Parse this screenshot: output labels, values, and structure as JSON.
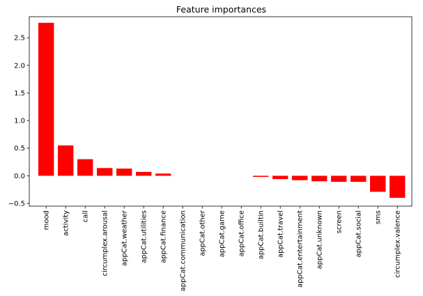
{
  "chart_data": {
    "type": "bar",
    "title": "Feature importances",
    "xlabel": "",
    "ylabel": "",
    "ylim": [
      -0.55,
      2.88
    ],
    "yticks": [
      -0.5,
      0.0,
      0.5,
      1.0,
      1.5,
      2.0,
      2.5
    ],
    "ytick_labels": [
      "−0.5",
      "0.0",
      "0.5",
      "1.0",
      "1.5",
      "2.0",
      "2.5"
    ],
    "bar_color": "#ff0000",
    "grid": false,
    "categories": [
      "mood",
      "activity",
      "call",
      "circumplex.arousal",
      "appCat.weather",
      "appCat.utilities",
      "appCat.finance",
      "appCat.communication",
      "appCat.other",
      "appCat.game",
      "appCat.office",
      "appCat.builtin",
      "appCat.travel",
      "appCat.entertainment",
      "appCat.unknown",
      "screen",
      "appCat.social",
      "sms",
      "circumplex.valence"
    ],
    "values": [
      2.77,
      0.55,
      0.3,
      0.14,
      0.13,
      0.07,
      0.04,
      0.0,
      0.0,
      0.0,
      0.0,
      -0.02,
      -0.06,
      -0.08,
      -0.1,
      -0.11,
      -0.11,
      -0.29,
      -0.4
    ]
  }
}
